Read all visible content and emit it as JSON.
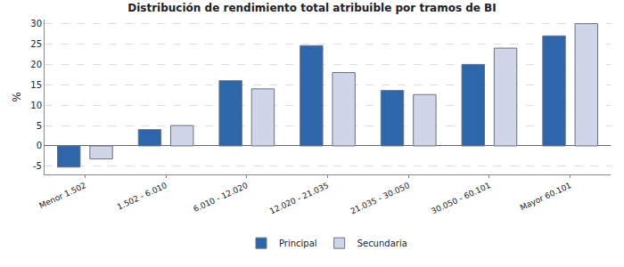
{
  "chart_data": {
    "type": "bar",
    "title": "Distribución de rendimiento total atribuible por tramos de BI",
    "y_label": "%",
    "categories": [
      "Menor 1.502",
      "1.502 - 6.010",
      "6.010 - 12.020",
      "12.020 - 21.035",
      "21.035 - 30.050",
      "30.050 - 60.101",
      "Mayor 60.101"
    ],
    "series": [
      {
        "name": "Principal",
        "color": "#2e66aa",
        "values": [
          -5.2,
          4,
          16,
          24.6,
          13.6,
          20,
          27
        ]
      },
      {
        "name": "Secundaria",
        "color": "#d0d5e8",
        "values": [
          -3.2,
          5,
          14,
          18,
          12.6,
          24,
          30
        ]
      }
    ],
    "ylim": [
      -7,
      31
    ],
    "yticks": [
      -5,
      0,
      5,
      10,
      15,
      20,
      25,
      30
    ],
    "grid": true,
    "legend": "bottom"
  }
}
